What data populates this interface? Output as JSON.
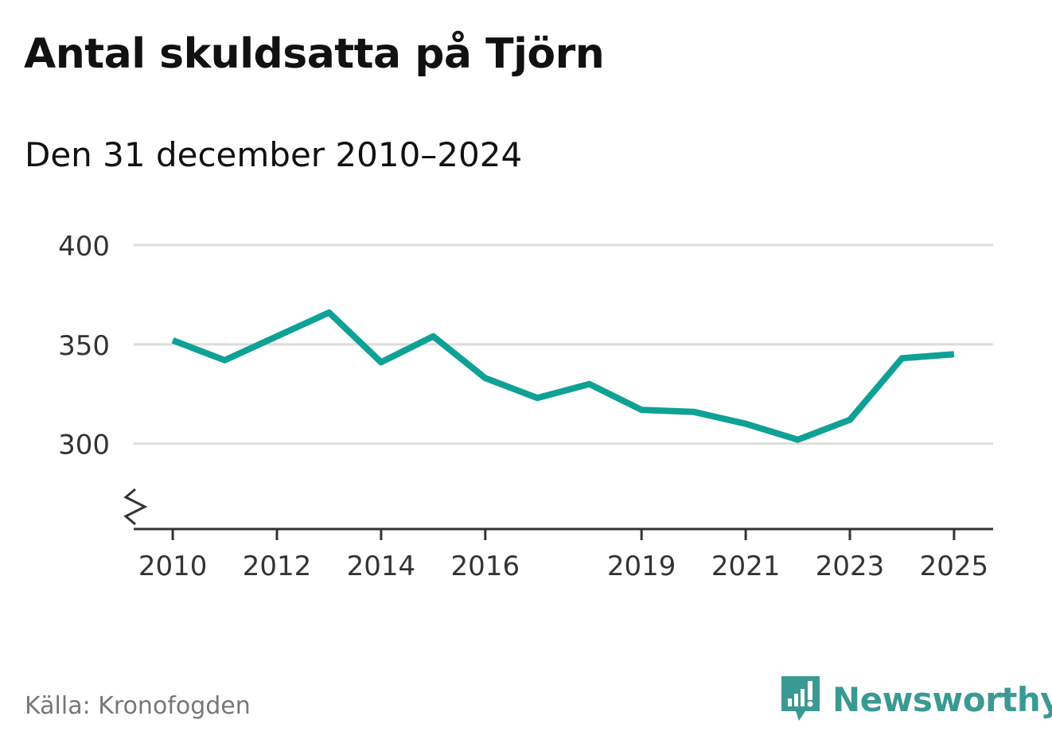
{
  "header": {
    "title": "Antal skuldsatta på Tjörn",
    "subtitle": "Den 31 december 2010–2024"
  },
  "footer": {
    "source": "Källa: Kronofogden",
    "brand": "Newsworthy"
  },
  "colors": {
    "line": "#0fa196",
    "grid": "#dddddd",
    "axis": "#333333",
    "brand": "#3a9a93"
  },
  "chart_data": {
    "type": "line",
    "title": "Antal skuldsatta på Tjörn",
    "subtitle": "Den 31 december 2010–2024",
    "xlabel": "",
    "ylabel": "",
    "x": [
      2010,
      2011,
      2012,
      2013,
      2014,
      2015,
      2016,
      2017,
      2018,
      2019,
      2020,
      2021,
      2022,
      2023,
      2024,
      2025
    ],
    "values": [
      352,
      342,
      354,
      366,
      341,
      354,
      333,
      323,
      330,
      317,
      316,
      310,
      302,
      312,
      343,
      345
    ],
    "ylim": [
      257,
      400
    ],
    "xlim": [
      2009.25,
      2025.75
    ],
    "yticks": [
      300,
      350,
      400
    ],
    "xticks": [
      2010,
      2012,
      2014,
      2016,
      2019,
      2021,
      2023,
      2025
    ],
    "grid": true,
    "axis_break": true
  }
}
